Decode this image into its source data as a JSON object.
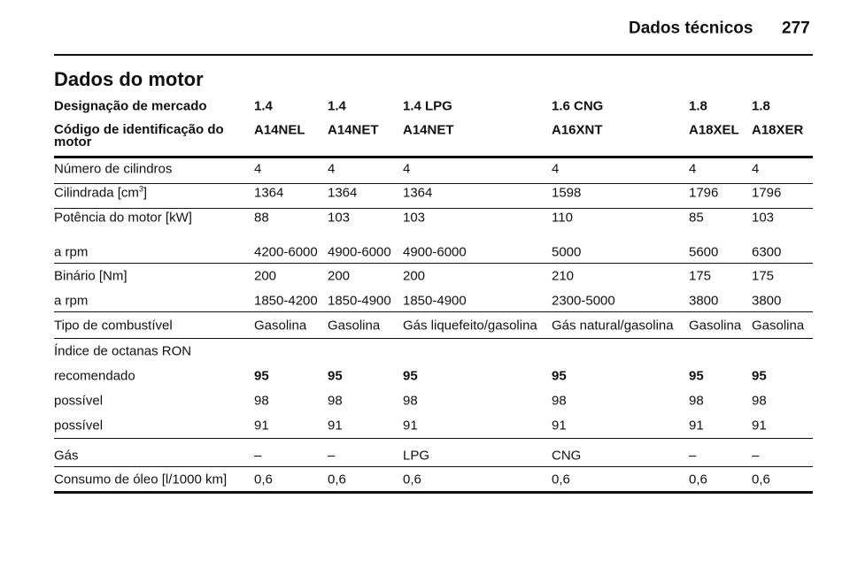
{
  "header": {
    "section": "Dados técnicos",
    "page": "277"
  },
  "title": "Dados do motor",
  "table": {
    "head": [
      {
        "label": "Designação de mercado",
        "cells": [
          "1.4",
          "1.4",
          "1.4 LPG",
          "1.6 CNG",
          "1.8",
          "1.8"
        ]
      },
      {
        "label": "Código de identificação do motor",
        "cells": [
          "A14NEL",
          "A14NET",
          "A14NET",
          "A16XNT",
          "A18XEL",
          "A18XER"
        ]
      }
    ],
    "rows": [
      {
        "label": "Número de cilindros",
        "cells": [
          "4",
          "4",
          "4",
          "4",
          "4",
          "4"
        ]
      },
      {
        "label": [
          "Cilindrada [cm",
          "3",
          "]"
        ],
        "cells": [
          "1364",
          "1364",
          "1364",
          "1598",
          "1796",
          "1796"
        ]
      },
      {
        "label": "Potência do motor [kW]",
        "cells": [
          "88",
          "103",
          "103",
          "110",
          "85",
          "103"
        ]
      },
      {
        "label": "a rpm",
        "cells": [
          "4200-6000",
          "4900-6000",
          "4900-6000",
          "5000",
          "5600",
          "6300"
        ]
      },
      {
        "label": "Binário [Nm]",
        "cells": [
          "200",
          "200",
          "200",
          "210",
          "175",
          "175"
        ]
      },
      {
        "label": "a rpm",
        "cells": [
          "1850-4200",
          "1850-4900",
          "1850-4900",
          "2300-5000",
          "3800",
          "3800"
        ]
      },
      {
        "label": "Tipo de combustível",
        "cells": [
          "Gasolina",
          "Gasolina",
          "Gás liquefeito/gasolina",
          "Gás natural/gasolina",
          "Gasolina",
          "Gasolina"
        ]
      },
      {
        "label": "Índice de octanas RON",
        "cells": []
      },
      {
        "label": "recomendado",
        "cells": [
          "95",
          "95",
          "95",
          "95",
          "95",
          "95"
        ]
      },
      {
        "label": "possível",
        "cells": [
          "98",
          "98",
          "98",
          "98",
          "98",
          "98"
        ]
      },
      {
        "label": "possível",
        "cells": [
          "91",
          "91",
          "91",
          "91",
          "91",
          "91"
        ]
      },
      {
        "label": "Gás",
        "cells": [
          "–",
          "–",
          "LPG",
          "CNG",
          "–",
          "–"
        ]
      },
      {
        "label": "Consumo de óleo [l/1000 km]",
        "cells": [
          "0,6",
          "0,6",
          "0,6",
          "0,6",
          "0,6",
          "0,6"
        ]
      }
    ]
  }
}
